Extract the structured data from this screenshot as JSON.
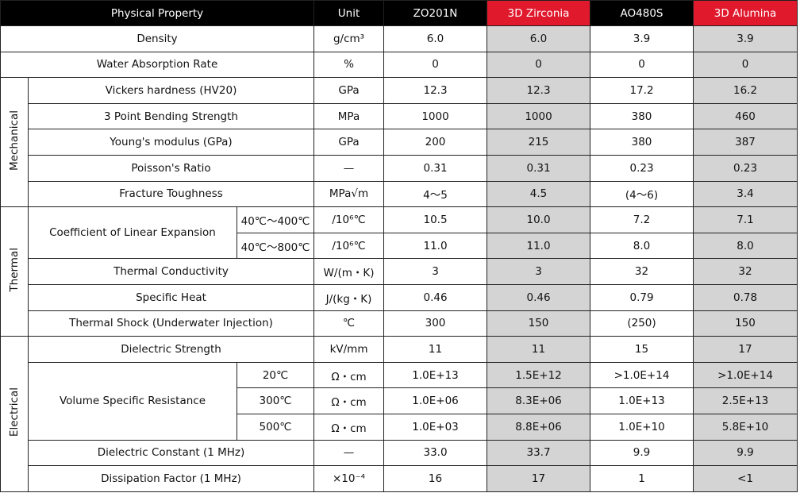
{
  "header": [
    "Physical Property",
    "Unit",
    "ZO201N",
    "3D Zirconia",
    "AO480S",
    "3D Alumina"
  ],
  "sections": [
    {
      "rows": [
        {
          "property": "Density",
          "unit": "g/cm³",
          "values": [
            "6.0",
            "6.0",
            "3.9",
            "3.9"
          ]
        },
        {
          "property": "Water Absorption Rate",
          "unit": "%",
          "values": [
            "0",
            "0",
            "0",
            "0"
          ]
        }
      ]
    },
    {
      "group": "Mechanical",
      "rows": [
        {
          "property": "Vickers hardness (HV20)",
          "unit": "GPa",
          "values": [
            "12.3",
            "12.3",
            "17.2",
            "16.2"
          ]
        },
        {
          "property": "3 Point Bending Strength",
          "unit": "MPa",
          "values": [
            "1000",
            "1000",
            "380",
            "460"
          ]
        },
        {
          "property": "Young's modulus (GPa)",
          "unit": "GPa",
          "values": [
            "200",
            "215",
            "380",
            "387"
          ]
        },
        {
          "property": "Poisson's Ratio",
          "unit": "—",
          "values": [
            "0.31",
            "0.31",
            "0.23",
            "0.23"
          ]
        },
        {
          "property": "Fracture Toughness",
          "unit": "MPa√m",
          "values": [
            "4～5",
            "4.5",
            "(4～6)",
            "3.4"
          ]
        }
      ]
    },
    {
      "group": "Thermal",
      "rows": [
        {
          "property": "Coefficient of Linear Expansion",
          "conditions": [
            {
              "condition": "40℃～400℃",
              "unit": "/10⁶℃",
              "values": [
                "10.5",
                "10.0",
                "7.2",
                "7.1"
              ]
            },
            {
              "condition": "40℃～800℃",
              "unit": "/10⁶℃",
              "values": [
                "11.0",
                "11.0",
                "8.0",
                "8.0"
              ]
            }
          ]
        },
        {
          "property": "Thermal Conductivity",
          "unit": "W/(m・K)",
          "values": [
            "3",
            "3",
            "32",
            "32"
          ]
        },
        {
          "property": "Specific Heat",
          "unit": "J/(kg・K)",
          "values": [
            "0.46",
            "0.46",
            "0.79",
            "0.78"
          ]
        },
        {
          "property": "Thermal Shock (Underwater Injection)",
          "unit": "℃",
          "values": [
            "300",
            "150",
            "(250)",
            "150"
          ]
        }
      ]
    },
    {
      "group": "Electrical",
      "rows": [
        {
          "property": "Dielectric Strength",
          "unit": "kV/mm",
          "values": [
            "11",
            "11",
            "15",
            "17"
          ]
        },
        {
          "property": "Volume Specific Resistance",
          "conditions": [
            {
              "condition": "20℃",
              "unit": "Ω・cm",
              "values": [
                "1.0E+13",
                "1.5E+12",
                ">1.0E+14",
                ">1.0E+14"
              ]
            },
            {
              "condition": "300℃",
              "unit": "Ω・cm",
              "values": [
                "1.0E+06",
                "8.3E+06",
                "1.0E+13",
                "2.5E+13"
              ]
            },
            {
              "condition": "500℃",
              "unit": "Ω・cm",
              "values": [
                "1.0E+03",
                "8.8E+06",
                "1.0E+10",
                "5.8E+10"
              ]
            }
          ]
        },
        {
          "property": "Dielectric Constant (1 MHz)",
          "unit": "—",
          "values": [
            "33.0",
            "33.7",
            "9.9",
            "9.9"
          ]
        },
        {
          "property": "Dissipation Factor (1 MHz)",
          "unit": "×10⁻⁴",
          "values": [
            "16",
            "17",
            "1",
            "<1"
          ]
        }
      ]
    }
  ]
}
